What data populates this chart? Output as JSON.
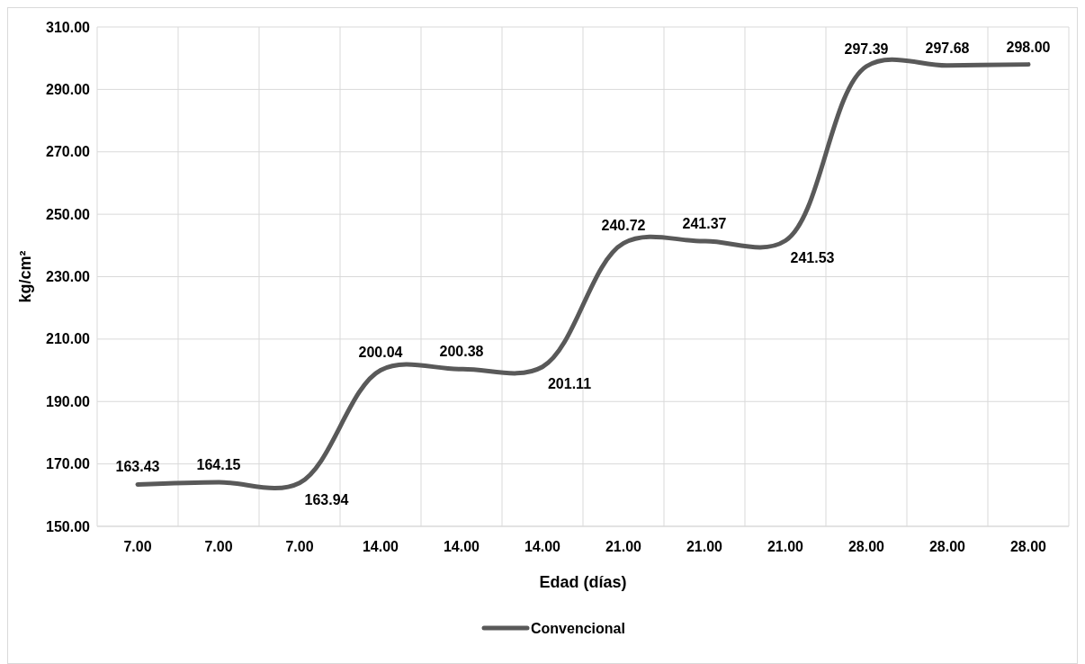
{
  "chart_data": {
    "type": "line",
    "xlabel": "Edad (días)",
    "ylabel": "kg/cm²",
    "categories": [
      "7.00",
      "7.00",
      "7.00",
      "14.00",
      "14.00",
      "14.00",
      "21.00",
      "21.00",
      "21.00",
      "28.00",
      "28.00",
      "28.00"
    ],
    "series": [
      {
        "name": "Convencional",
        "color": "#595959",
        "values": [
          163.43,
          164.15,
          163.94,
          200.04,
          200.38,
          201.11,
          240.72,
          241.37,
          241.53,
          297.39,
          297.68,
          298.0
        ],
        "value_labels": [
          "163.43",
          "164.15",
          "163.94",
          "200.04",
          "200.38",
          "201.11",
          "240.72",
          "241.37",
          "241.53",
          "297.39",
          "297.68",
          "298.00"
        ]
      }
    ],
    "ylim": [
      150,
      310
    ],
    "yticks": [
      {
        "value": 150,
        "label": "150.00"
      },
      {
        "value": 170,
        "label": "170.00"
      },
      {
        "value": 190,
        "label": "190.00"
      },
      {
        "value": 210,
        "label": "210.00"
      },
      {
        "value": 230,
        "label": "230.00"
      },
      {
        "value": 250,
        "label": "250.00"
      },
      {
        "value": 270,
        "label": "270.00"
      },
      {
        "value": 290,
        "label": "290.00"
      },
      {
        "value": 310,
        "label": "310.00"
      }
    ],
    "grid": true,
    "legend": "bottom",
    "marker": "none",
    "line_style": "solid"
  }
}
